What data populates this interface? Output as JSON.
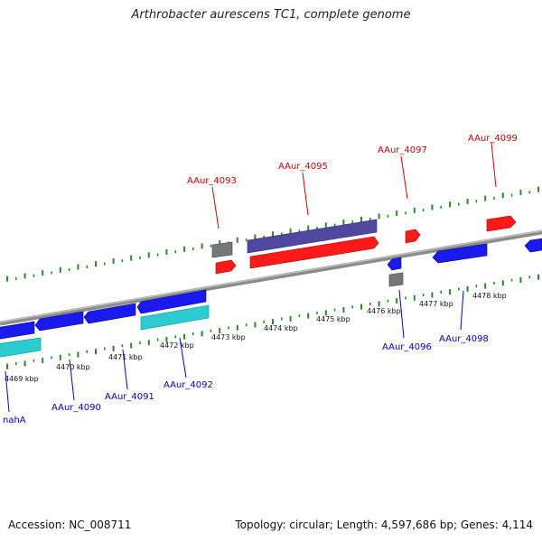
{
  "title": "Arthrobacter aurescens TC1, complete genome",
  "footer": {
    "accession": "Accession: NC_008711",
    "summary": "Topology: circular; Length: 4,597,686 bp; Genes: 4,114"
  },
  "colors": {
    "plus_gene": "#ff1010",
    "minus_gene": "#1a1aee",
    "cyan_gene": "#27c9cf",
    "purple_gene": "#4a3f8f",
    "grey_gene": "#6e6e6e",
    "backbone": "#8c8c8c",
    "ticks": "#2a8a2a",
    "plus_label": "#cc0000",
    "minus_label": "#0000bb"
  },
  "scale_labels": [
    "4469 kbp",
    "4470 kbp",
    "4471 kbp",
    "4472 kbp",
    "4473 kbp",
    "4474 kbp",
    "4475 kbp",
    "4476 kbp",
    "4477 kbp",
    "4478 kbp"
  ],
  "plus_labels": [
    "AAur_4093",
    "AAur_4095",
    "AAur_4097",
    "AAur_4099"
  ],
  "minus_labels": [
    "nahA",
    "AAur_4090",
    "AAur_4091",
    "AAur_4092",
    "AAur_4096",
    "AAur_4098"
  ]
}
